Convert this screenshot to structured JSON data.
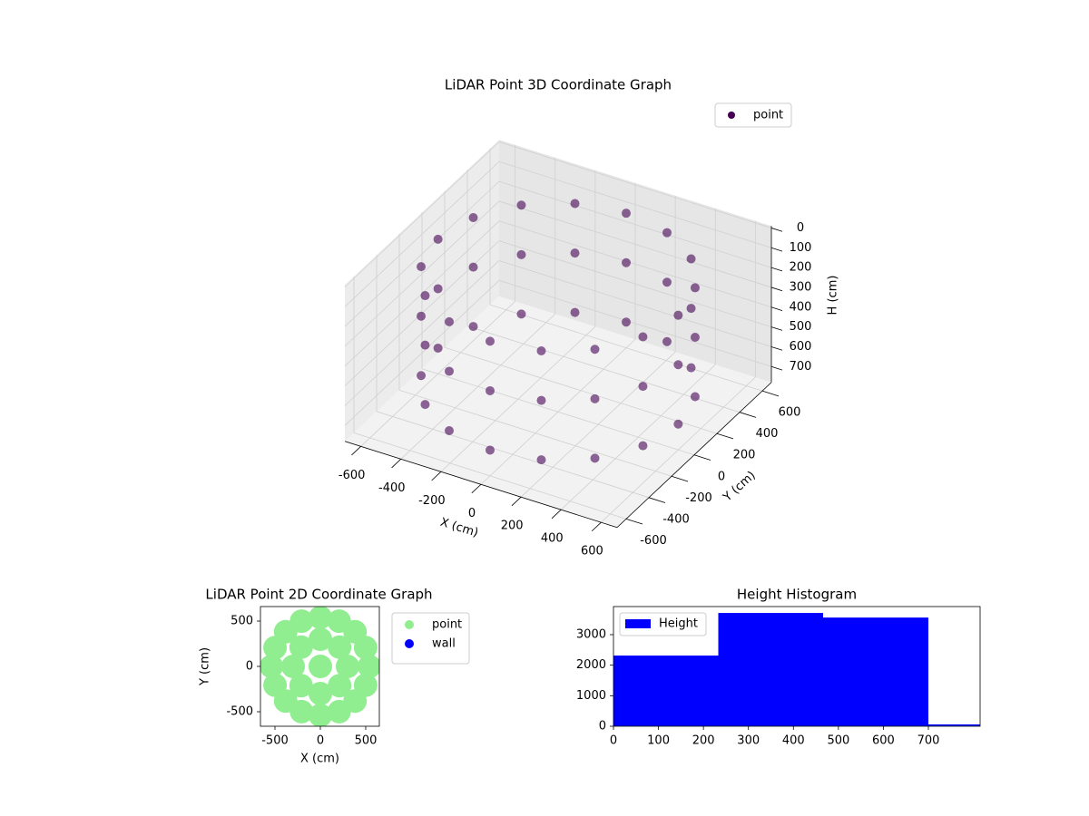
{
  "chart_data": [
    {
      "type": "scatter3d",
      "title": "LiDAR Point 3D Coordinate Graph",
      "xlabel": "X (cm)",
      "ylabel": "Y (cm)",
      "zlabel": "H (cm)",
      "xlim": [
        -680,
        680
      ],
      "ylim": [
        -680,
        680
      ],
      "zlim": [
        780,
        -10
      ],
      "xticks": [
        -600,
        -400,
        -200,
        0,
        200,
        400,
        600
      ],
      "yticks": [
        -600,
        -400,
        -200,
        0,
        200,
        400,
        600
      ],
      "zticks": [
        0,
        100,
        200,
        300,
        400,
        500,
        600,
        700
      ],
      "grid": true,
      "legend_loc": "upper right",
      "series": [
        {
          "name": "point",
          "color": "#440154",
          "x": [
            600,
            554,
            424,
            230,
            0,
            -230,
            -424,
            -554,
            -600,
            -554,
            -424,
            -230,
            0,
            230,
            424,
            554,
            600,
            554,
            424,
            230,
            0,
            -230,
            -424,
            -554,
            -600,
            -554,
            -424,
            -230,
            0,
            230,
            424,
            554,
            600,
            554,
            424,
            230,
            0,
            -230,
            -424,
            -554,
            -600,
            -554,
            -424,
            -230,
            0,
            230,
            424,
            554
          ],
          "y": [
            0,
            230,
            424,
            554,
            600,
            554,
            424,
            230,
            0,
            -230,
            -424,
            -554,
            -600,
            -554,
            -424,
            -230,
            0,
            230,
            424,
            554,
            600,
            554,
            424,
            230,
            0,
            -230,
            -424,
            -554,
            -600,
            -554,
            -424,
            -230,
            0,
            230,
            424,
            554,
            600,
            554,
            424,
            230,
            0,
            -230,
            -424,
            -554,
            -600,
            -554,
            -424,
            -230
          ],
          "z": [
            100,
            100,
            100,
            100,
            100,
            100,
            100,
            100,
            100,
            100,
            100,
            100,
            100,
            100,
            100,
            100,
            350,
            350,
            350,
            350,
            350,
            350,
            350,
            350,
            350,
            350,
            350,
            350,
            350,
            350,
            350,
            350,
            650,
            650,
            650,
            650,
            650,
            650,
            650,
            650,
            650,
            650,
            650,
            650,
            650,
            650,
            650,
            650
          ]
        }
      ]
    },
    {
      "type": "scatter",
      "title": "LiDAR Point 2D Coordinate Graph",
      "xlabel": "X (cm)",
      "ylabel": "Y (cm)",
      "xlim": [
        -660,
        650
      ],
      "ylim": [
        -660,
        660
      ],
      "xticks": [
        -500,
        0,
        500
      ],
      "yticks": [
        -500,
        0,
        500
      ],
      "legend_loc": "outside right",
      "series": [
        {
          "name": "point",
          "color": "#90ee90",
          "x": [
            540,
            499,
            382,
            207,
            0,
            -207,
            -382,
            -499,
            -540,
            -499,
            -382,
            -207,
            0,
            207,
            382,
            499,
            300,
            212,
            0,
            -212,
            -300,
            -212,
            0,
            212,
            0
          ],
          "y": [
            0,
            207,
            382,
            499,
            540,
            499,
            382,
            207,
            0,
            -207,
            -382,
            -499,
            -540,
            -499,
            -382,
            -207,
            0,
            212,
            300,
            212,
            0,
            -212,
            -300,
            -212,
            0
          ]
        },
        {
          "name": "wall",
          "color": "#0000ff",
          "x": [],
          "y": []
        }
      ]
    },
    {
      "type": "histogram",
      "title": "Height Histogram",
      "bins": [
        0,
        233,
        466,
        700,
        933
      ],
      "xlim": [
        0,
        815
      ],
      "ylim": [
        0,
        3920
      ],
      "xticks": [
        0,
        100,
        200,
        300,
        400,
        500,
        600,
        700
      ],
      "yticks": [
        0,
        1000,
        2000,
        3000
      ],
      "legend_loc": "upper left",
      "series": [
        {
          "name": "Height",
          "color": "#0000ff",
          "values": [
            2315,
            3710,
            3560,
            60
          ]
        }
      ]
    }
  ]
}
